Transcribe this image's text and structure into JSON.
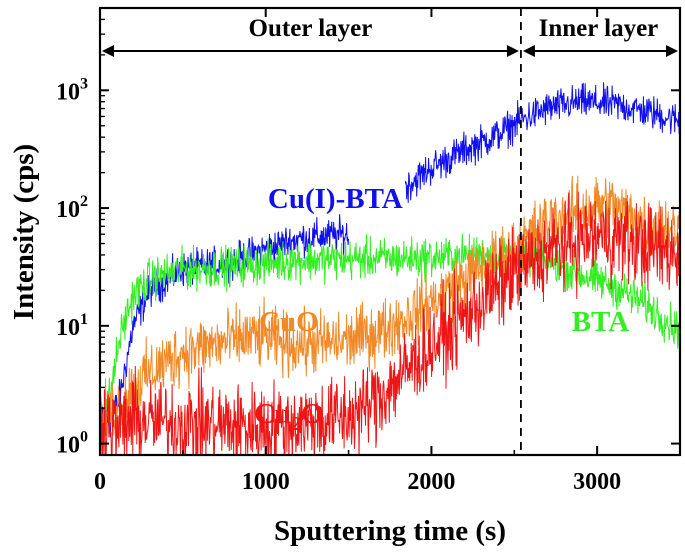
{
  "chart_data": {
    "type": "line",
    "title": "",
    "xlabel": "Sputtering time (s)",
    "ylabel": "Intensity (cps)",
    "xlim": [
      0,
      3500
    ],
    "ylim": [
      0.8,
      5000
    ],
    "yscale": "log",
    "x_ticks": [
      0,
      1000,
      2000,
      3000
    ],
    "x_tick_labels": [
      "0",
      "1000",
      "2000",
      "3000"
    ],
    "y_ticks": [
      1,
      10,
      100,
      1000
    ],
    "y_tick_labels": [
      {
        "base": "10",
        "exp": "0"
      },
      {
        "base": "10",
        "exp": "1"
      },
      {
        "base": "10",
        "exp": "2"
      },
      {
        "base": "10",
        "exp": "3"
      }
    ],
    "regions": [
      {
        "label": "Outer layer",
        "from": 0,
        "to": 2540
      },
      {
        "label": "Inner layer",
        "from": 2540,
        "to": 3500
      }
    ],
    "boundary_x": 2540,
    "series": [
      {
        "name": "Cu(I)-BTA",
        "label_parts": [
          {
            "t": "Cu(I)-BTA"
          }
        ],
        "color": "#1010ee",
        "label_at": {
          "x": 1420,
          "y": 100
        },
        "noise": 0.12,
        "points": [
          [
            0,
            2
          ],
          [
            60,
            1.5
          ],
          [
            120,
            2.5
          ],
          [
            200,
            10
          ],
          [
            300,
            20
          ],
          [
            500,
            30
          ],
          [
            800,
            35
          ],
          [
            1000,
            45
          ],
          [
            1200,
            55
          ],
          [
            1500,
            60
          ],
          [
            1510,
            null
          ],
          [
            1840,
            150
          ],
          [
            2000,
            220
          ],
          [
            2200,
            310
          ],
          [
            2400,
            420
          ],
          [
            2540,
            560
          ],
          [
            2700,
            700
          ],
          [
            2900,
            800
          ],
          [
            3100,
            760
          ],
          [
            3300,
            660
          ],
          [
            3500,
            550
          ]
        ]
      },
      {
        "name": "BTA",
        "label_parts": [
          {
            "t": "BTA"
          }
        ],
        "color": "#33ee22",
        "label_at": {
          "x": 3020,
          "y": 9
        },
        "noise": 0.14,
        "points": [
          [
            0,
            1.8
          ],
          [
            60,
            2.5
          ],
          [
            120,
            8
          ],
          [
            200,
            18
          ],
          [
            300,
            25
          ],
          [
            500,
            30
          ],
          [
            800,
            32
          ],
          [
            1200,
            36
          ],
          [
            1600,
            37
          ],
          [
            2000,
            38
          ],
          [
            2300,
            40
          ],
          [
            2540,
            42
          ],
          [
            2700,
            35
          ],
          [
            2900,
            27
          ],
          [
            3100,
            22
          ],
          [
            3300,
            15
          ],
          [
            3500,
            9
          ]
        ]
      },
      {
        "name": "CuO",
        "label_parts": [
          {
            "t": "CuO"
          }
        ],
        "color": "#f08a28",
        "label_at": {
          "x": 1140,
          "y": 9
        },
        "noise": 0.22,
        "points": [
          [
            0,
            1.5
          ],
          [
            100,
            2
          ],
          [
            200,
            3
          ],
          [
            300,
            4
          ],
          [
            500,
            6
          ],
          [
            700,
            7
          ],
          [
            900,
            8
          ],
          [
            1000,
            8
          ],
          [
            1100,
            7
          ],
          [
            1300,
            7
          ],
          [
            1500,
            7.5
          ],
          [
            1700,
            9
          ],
          [
            1900,
            13
          ],
          [
            2100,
            20
          ],
          [
            2300,
            30
          ],
          [
            2500,
            45
          ],
          [
            2700,
            75
          ],
          [
            2900,
            95
          ],
          [
            3060,
            110
          ],
          [
            3200,
            85
          ],
          [
            3350,
            72
          ],
          [
            3500,
            65
          ]
        ]
      },
      {
        "name": "Cu2O",
        "label_parts": [
          {
            "t": "Cu"
          },
          {
            "t": "2",
            "sub": true
          },
          {
            "t": "O"
          }
        ],
        "color": "#ee1515",
        "label_at": {
          "x": 1140,
          "y": 1.5
        },
        "noise": 0.3,
        "points": [
          [
            0,
            1.8
          ],
          [
            100,
            1.3
          ],
          [
            200,
            1.6
          ],
          [
            400,
            1.5
          ],
          [
            600,
            1.5
          ],
          [
            800,
            1.4
          ],
          [
            1000,
            1.4
          ],
          [
            1200,
            1.5
          ],
          [
            1400,
            1.6
          ],
          [
            1550,
            1.8
          ],
          [
            1700,
            2.6
          ],
          [
            1900,
            5
          ],
          [
            2100,
            9
          ],
          [
            2300,
            16
          ],
          [
            2500,
            28
          ],
          [
            2700,
            42
          ],
          [
            2900,
            55
          ],
          [
            3050,
            58
          ],
          [
            3200,
            52
          ],
          [
            3350,
            45
          ],
          [
            3500,
            40
          ]
        ]
      }
    ]
  }
}
